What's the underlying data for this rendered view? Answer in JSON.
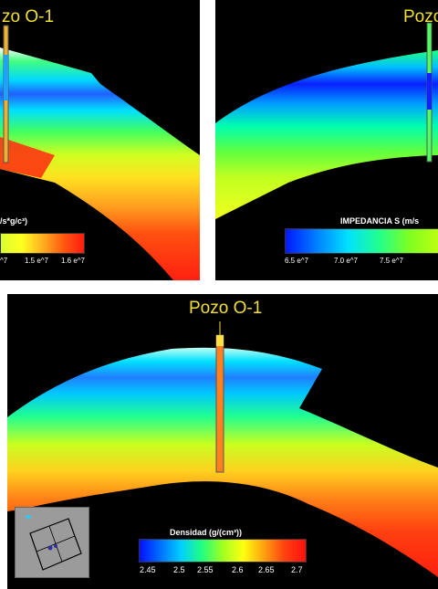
{
  "panel_left": {
    "well_label": "zo O-1",
    "colorbar": {
      "title": "/s*g/c³)",
      "tick_labels": [
        "^7",
        "1.5 e^7",
        "1.6 e^7"
      ],
      "gradient": [
        "#d8ff30",
        "#ffff20",
        "#ffb020",
        "#ff5a10",
        "#ff1a10"
      ]
    }
  },
  "panel_right": {
    "well_label": "Pozo",
    "colorbar": {
      "title": "IMPEDANCIA S (m/s",
      "tick_labels": [
        "6.5 e^7",
        "7.0 e^7",
        "7.5 e^7"
      ],
      "gradient": [
        "#0018ff",
        "#0080ff",
        "#00e0ff",
        "#20ff90",
        "#80ff20",
        "#c0ff10"
      ]
    }
  },
  "panel_bottom": {
    "well_label": "Pozo O-1",
    "colorbar": {
      "title": "Densidad  (g/(cm³))",
      "tick_labels": [
        "2.45",
        "2.5",
        "2.55",
        "2.6",
        "2.65",
        "2.7"
      ],
      "gradient": [
        "#0010ff",
        "#0070ff",
        "#00d0ff",
        "#20ff80",
        "#a0ff20",
        "#ffff10",
        "#ffa010",
        "#ff4010",
        "#ff1010"
      ]
    }
  },
  "colors": {
    "background": "#000000",
    "well_label": "#f2e033"
  }
}
